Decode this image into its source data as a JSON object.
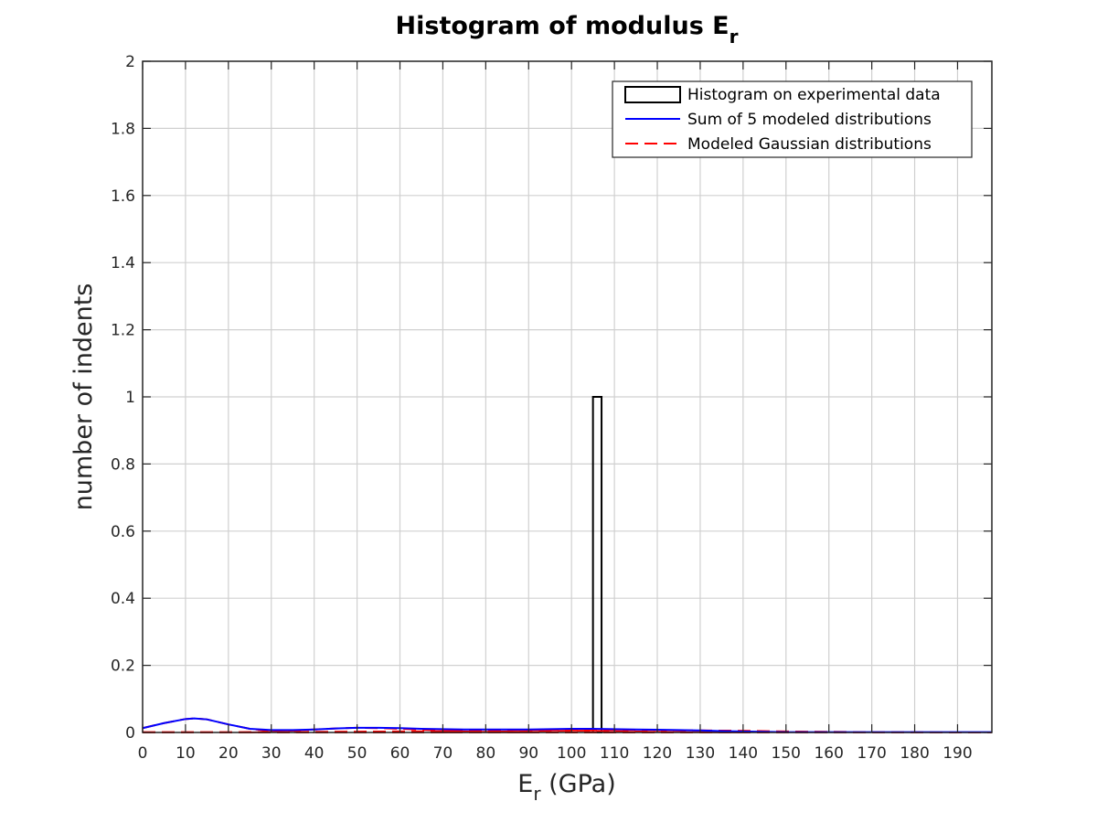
{
  "chart_data": {
    "type": "bar",
    "title": "Histogram of modulus E",
    "title_subscript": "r",
    "xlabel": "E",
    "xlabel_subscript": "r",
    "xlabel_unit": " (GPa)",
    "ylabel": "number of indents",
    "xlim": [
      0,
      198
    ],
    "ylim": [
      0,
      2
    ],
    "x_ticks": [
      "0",
      "10",
      "20",
      "30",
      "40",
      "50",
      "60",
      "70",
      "80",
      "90",
      "100",
      "110",
      "120",
      "130",
      "140",
      "150",
      "160",
      "170",
      "180",
      "190"
    ],
    "y_ticks": [
      "0",
      "0.2",
      "0.4",
      "0.6",
      "0.8",
      "1",
      "1.2",
      "1.4",
      "1.6",
      "1.8",
      "2"
    ],
    "grid": true,
    "legend_position": "top-right",
    "histogram": {
      "name": "Histogram on experimental data",
      "bins": [
        {
          "x0": 105,
          "x1": 107,
          "count": 1
        }
      ],
      "color": "#000000"
    },
    "series": [
      {
        "name": "Sum of 5 modeled distributions",
        "style": "solid",
        "color": "#0000ff",
        "x": [
          0,
          5,
          10,
          12,
          15,
          20,
          25,
          30,
          35,
          40,
          45,
          50,
          55,
          60,
          65,
          70,
          75,
          80,
          85,
          90,
          95,
          100,
          105,
          110,
          115,
          120,
          125,
          130,
          135,
          140,
          145,
          150,
          160,
          170,
          180,
          190,
          198
        ],
        "y": [
          0.013,
          0.028,
          0.04,
          0.042,
          0.039,
          0.024,
          0.011,
          0.007,
          0.007,
          0.009,
          0.012,
          0.014,
          0.014,
          0.013,
          0.011,
          0.01,
          0.009,
          0.009,
          0.009,
          0.009,
          0.01,
          0.011,
          0.011,
          0.01,
          0.009,
          0.008,
          0.007,
          0.006,
          0.004,
          0.003,
          0.002,
          0.001,
          0.001,
          0.001,
          0.001,
          0.001,
          0.001
        ]
      },
      {
        "name": "Modeled Gaussian distributions",
        "style": "dashed",
        "color": "#ff0000",
        "components": [
          {
            "x": [
              0,
              5,
              10,
              12,
              15,
              20,
              25,
              30,
              35,
              40
            ],
            "y": [
              0.013,
              0.028,
              0.04,
              0.042,
              0.039,
              0.024,
              0.011,
              0.004,
              0.001,
              0.0
            ]
          },
          {
            "x": [
              25,
              30,
              35,
              40,
              45,
              50,
              55,
              60,
              65,
              70,
              75,
              80,
              90
            ],
            "y": [
              0.0,
              0.002,
              0.005,
              0.009,
              0.012,
              0.014,
              0.013,
              0.011,
              0.008,
              0.005,
              0.003,
              0.001,
              0.0
            ]
          },
          {
            "x": [
              0,
              20,
              40,
              60,
              70,
              80,
              90,
              100,
              110,
              120,
              130,
              140,
              150,
              160,
              170,
              180,
              190,
              198
            ],
            "y": [
              0.001,
              0.001,
              0.002,
              0.003,
              0.004,
              0.005,
              0.006,
              0.006,
              0.006,
              0.006,
              0.006,
              0.005,
              0.003,
              0.002,
              0.001,
              0.001,
              0.0,
              0.0
            ]
          },
          {
            "x": [
              70,
              80,
              90,
              100,
              105,
              110,
              120,
              130,
              140
            ],
            "y": [
              0.0,
              0.002,
              0.004,
              0.005,
              0.005,
              0.004,
              0.002,
              0.001,
              0.0
            ]
          },
          {
            "x": [
              0,
              50,
              100,
              150,
              198
            ],
            "y": [
              0.0,
              0.0,
              0.0,
              0.0,
              0.0
            ]
          }
        ]
      }
    ]
  }
}
